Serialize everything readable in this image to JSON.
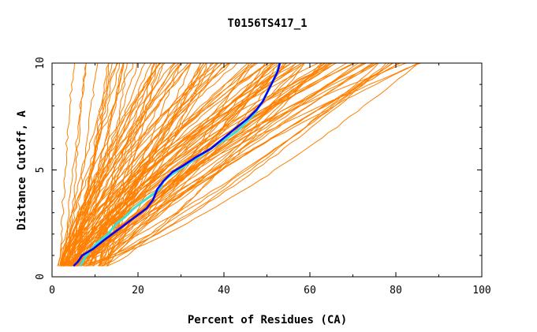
{
  "chart_data": {
    "type": "line",
    "title": "T0156TS417_1",
    "xlabel": "Percent of Residues (CA)",
    "ylabel": "Distance Cutoff, A",
    "xlim": [
      0,
      100
    ],
    "ylim": [
      0,
      10
    ],
    "x_ticks": [
      "0",
      "20",
      "40",
      "60",
      "80",
      "100"
    ],
    "y_ticks": [
      "0",
      "5",
      "10"
    ],
    "grid": false,
    "legend": "none",
    "colors": {
      "background_models": "#ff8000",
      "highlight_model": "#0000ff",
      "reference_model": "#40e0d0",
      "axes": "#000000"
    },
    "background_models": {
      "count": 120,
      "cutoff_range": [
        0.5,
        10
      ],
      "pct_at_0_5_range": [
        1.5,
        13
      ],
      "pct_at_10_range": [
        5,
        87
      ]
    },
    "series": [
      {
        "role": "reference_model",
        "x": [
          6.5,
          8,
          10,
          13,
          15,
          17,
          19,
          21,
          23,
          25,
          26,
          28,
          31,
          34,
          37,
          40,
          43,
          45,
          47,
          49,
          50.5,
          52,
          53
        ],
        "y": [
          0.5,
          1.0,
          1.5,
          2.0,
          2.5,
          2.8,
          3.2,
          3.5,
          3.8,
          4.1,
          4.5,
          4.8,
          5.2,
          5.6,
          6.0,
          6.4,
          6.8,
          7.2,
          7.6,
          8.2,
          8.8,
          9.4,
          10.0
        ]
      },
      {
        "role": "highlight_model",
        "x": [
          5,
          6,
          7,
          9.5,
          12,
          14,
          16,
          18,
          20,
          22,
          23.5,
          24.5,
          26,
          28,
          30.5,
          33.5,
          37,
          40,
          43,
          45.5,
          47.5,
          49,
          50,
          51.5,
          52.5,
          53
        ],
        "y": [
          0.5,
          0.7,
          1.0,
          1.3,
          1.7,
          2.0,
          2.3,
          2.6,
          2.9,
          3.2,
          3.6,
          4.1,
          4.5,
          4.9,
          5.2,
          5.6,
          6.0,
          6.5,
          7.0,
          7.4,
          7.8,
          8.2,
          8.6,
          9.2,
          9.6,
          10.0
        ]
      }
    ]
  }
}
